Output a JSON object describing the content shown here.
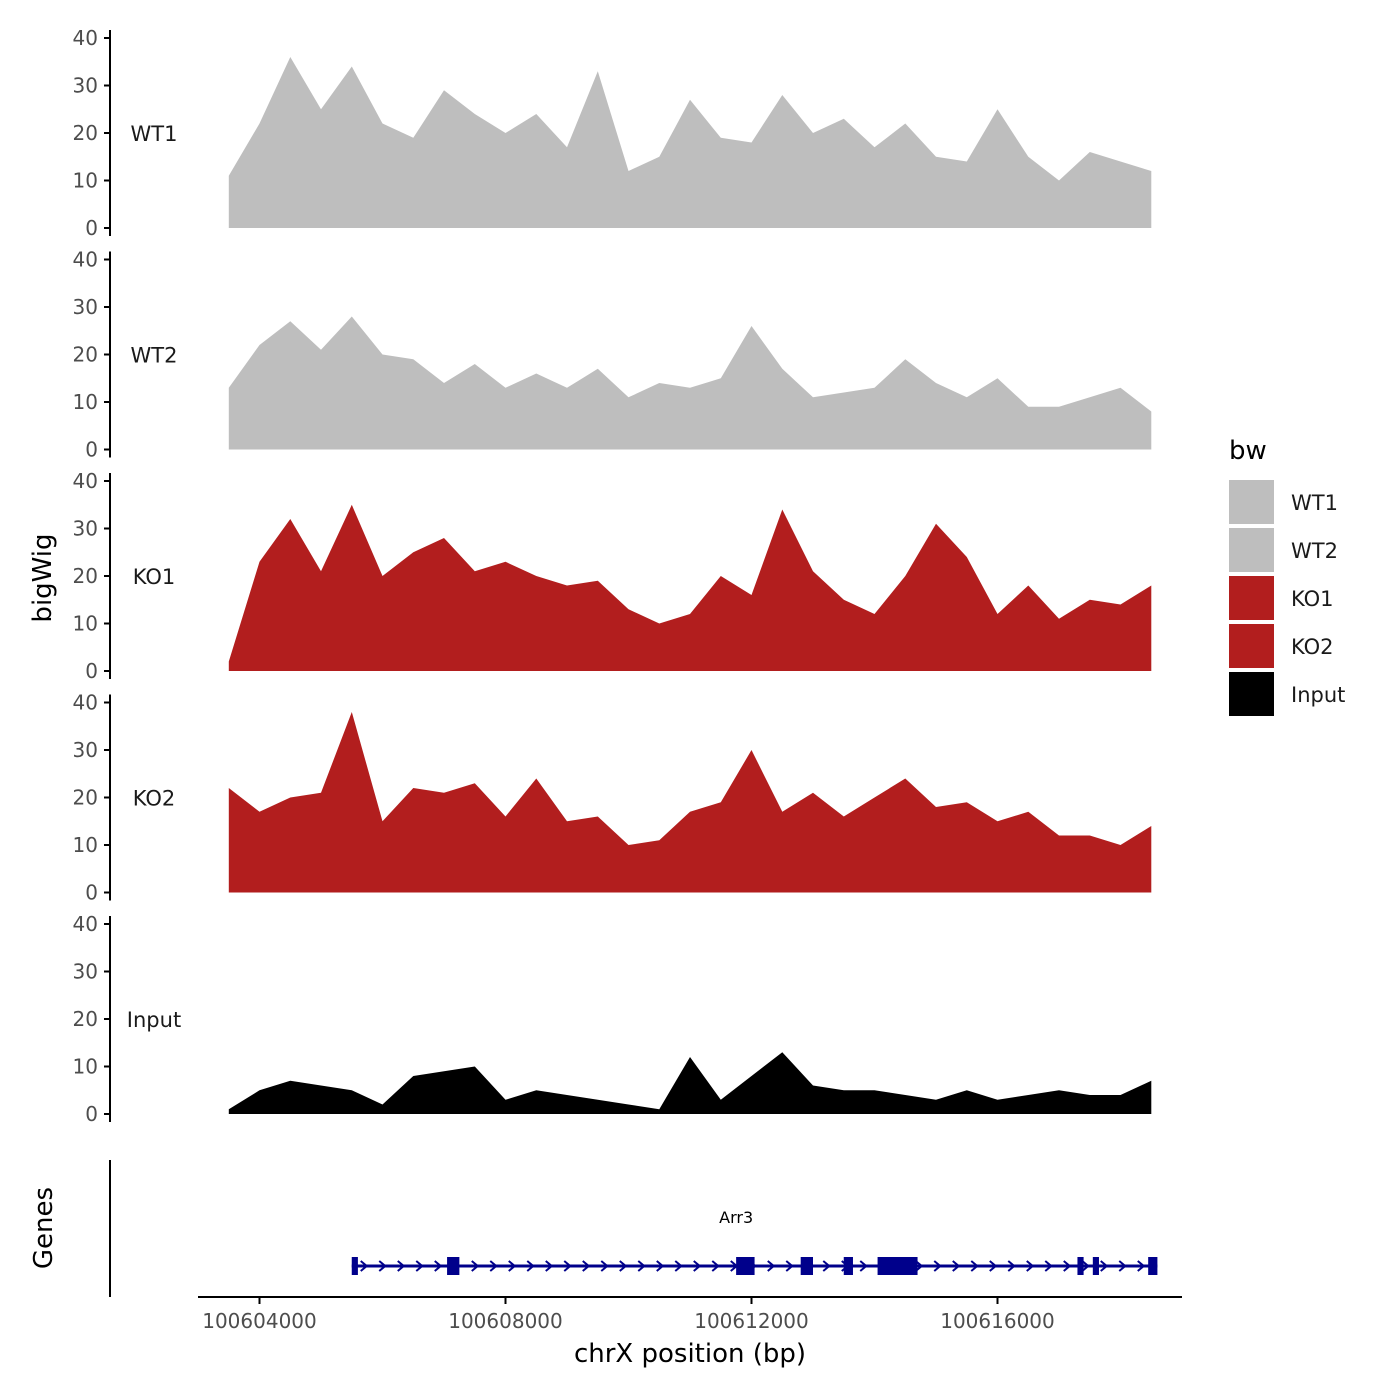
{
  "chart_data": {
    "type": "area",
    "ylabel": "bigWig",
    "xlabel": "chrX position (bp)",
    "ylim": [
      0,
      40
    ],
    "yticks": [
      "0",
      "10",
      "20",
      "30",
      "40"
    ],
    "xlim": [
      100603000,
      100619000
    ],
    "xticks": [
      {
        "value": 100604000,
        "label": "100604000"
      },
      {
        "value": 100608000,
        "label": "100608000"
      },
      {
        "value": 100612000,
        "label": "100612000"
      },
      {
        "value": 100616000,
        "label": "100616000"
      }
    ],
    "x": [
      100603500,
      100604000,
      100604500,
      100605000,
      100605500,
      100606000,
      100606500,
      100607000,
      100607500,
      100608000,
      100608500,
      100609000,
      100609500,
      100610000,
      100610500,
      100611000,
      100611500,
      100612000,
      100612500,
      100613000,
      100613500,
      100614000,
      100614500,
      100615000,
      100615500,
      100616000,
      100616500,
      100617000,
      100617500,
      100618000,
      100618500
    ],
    "series": [
      {
        "name": "WT1",
        "color": "#bebebe",
        "values": [
          11,
          22,
          36,
          25,
          34,
          22,
          19,
          29,
          24,
          20,
          24,
          17,
          33,
          12,
          15,
          27,
          19,
          18,
          28,
          20,
          23,
          17,
          22,
          15,
          14,
          25,
          15,
          10,
          16,
          14,
          12
        ]
      },
      {
        "name": "WT2",
        "color": "#bebebe",
        "values": [
          13,
          22,
          27,
          21,
          28,
          20,
          19,
          14,
          18,
          13,
          16,
          13,
          17,
          11,
          14,
          13,
          15,
          26,
          17,
          11,
          12,
          13,
          19,
          14,
          11,
          15,
          9,
          9,
          11,
          13,
          8
        ]
      },
      {
        "name": "KO1",
        "color": "#b21e1e",
        "values": [
          2,
          23,
          32,
          21,
          35,
          20,
          25,
          28,
          21,
          23,
          20,
          18,
          19,
          13,
          10,
          12,
          20,
          16,
          34,
          21,
          15,
          12,
          20,
          31,
          24,
          12,
          18,
          11,
          15,
          14,
          18
        ]
      },
      {
        "name": "KO2",
        "color": "#b21e1e",
        "values": [
          22,
          17,
          20,
          21,
          38,
          15,
          22,
          21,
          23,
          16,
          24,
          15,
          16,
          10,
          11,
          17,
          19,
          30,
          17,
          21,
          16,
          20,
          24,
          18,
          19,
          15,
          17,
          12,
          12,
          10,
          14
        ]
      },
      {
        "name": "Input",
        "color": "#000000",
        "values": [
          1,
          5,
          7,
          6,
          5,
          2,
          8,
          9,
          10,
          3,
          5,
          4,
          3,
          2,
          1,
          12,
          3,
          8,
          13,
          6,
          5,
          5,
          4,
          3,
          5,
          3,
          4,
          5,
          4,
          4,
          7
        ]
      }
    ],
    "legend": {
      "title": "bw",
      "entries": [
        {
          "label": "WT1",
          "color": "#bebebe"
        },
        {
          "label": "WT2",
          "color": "#bebebe"
        },
        {
          "label": "KO1",
          "color": "#b21e1e"
        },
        {
          "label": "KO2",
          "color": "#b21e1e"
        },
        {
          "label": "Input",
          "color": "#000000"
        }
      ]
    },
    "genes": {
      "axis_label": "Genes",
      "color": "#00008b",
      "items": [
        {
          "name": "Arr3",
          "start": 100605500,
          "end": 100618600,
          "exons": [
            [
              100605500,
              100605600
            ],
            [
              100607050,
              100607250
            ],
            [
              100611750,
              100612050
            ],
            [
              100612800,
              100613000
            ],
            [
              100613500,
              100613650
            ],
            [
              100614050,
              100614700
            ],
            [
              100617300,
              100617400
            ],
            [
              100617550,
              100617650
            ],
            [
              100618450,
              100618600
            ]
          ]
        }
      ]
    }
  }
}
